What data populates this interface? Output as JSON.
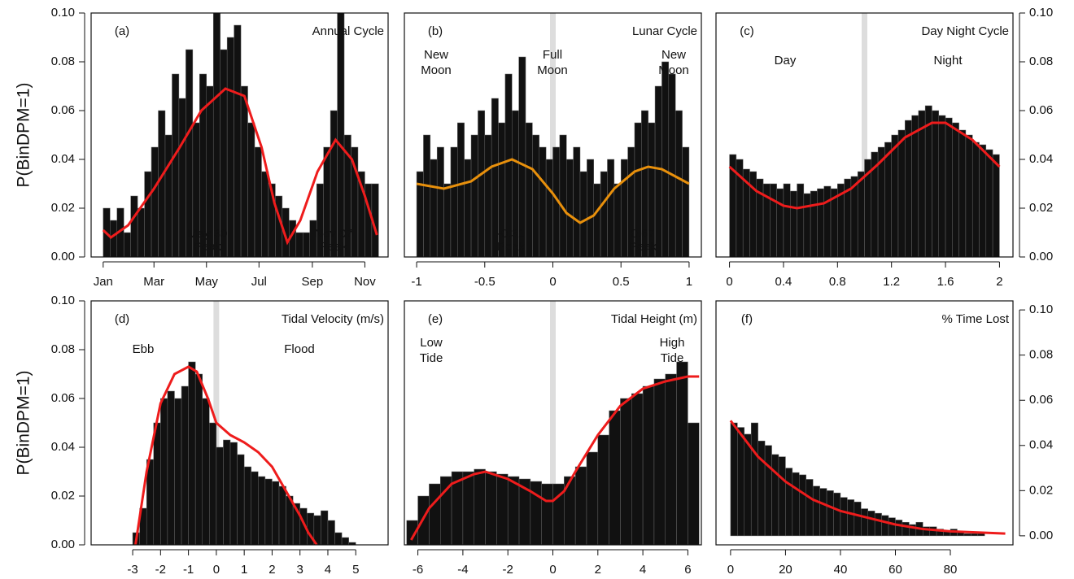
{
  "chart_data": [
    {
      "type": "histogram",
      "label": "(a)",
      "title": "Annual Cycle",
      "ylabel": "P(BinDPM=1)",
      "y_axis": "left",
      "bar_color": "#111111",
      "bins": [
        1,
        9,
        17,
        25,
        33,
        41,
        49,
        57,
        65,
        73,
        81,
        89,
        97,
        105,
        113,
        121,
        129,
        137,
        145,
        153,
        161,
        169,
        177,
        185,
        193,
        201,
        209,
        217,
        225,
        233,
        241,
        249,
        257,
        265,
        273,
        281,
        289,
        297,
        305,
        313,
        321
      ],
      "values": [
        0.02,
        0.015,
        0.02,
        0.01,
        0.025,
        0.02,
        0.035,
        0.045,
        0.06,
        0.05,
        0.075,
        0.065,
        0.085,
        0.055,
        0.075,
        0.07,
        0.1,
        0.085,
        0.09,
        0.095,
        0.07,
        0.055,
        0.045,
        0.035,
        0.03,
        0.025,
        0.02,
        0.015,
        0.01,
        0.01,
        0.015,
        0.03,
        0.045,
        0.06,
        0.1,
        0.05,
        0.045,
        0.035,
        0.03,
        0.03
      ],
      "xlim": [
        -13,
        332
      ],
      "xticks": [
        {
          "value": 1,
          "label": "Jan"
        },
        {
          "value": 60,
          "label": "Mar"
        },
        {
          "value": 121,
          "label": "May"
        },
        {
          "value": 182,
          "label": "Jul"
        },
        {
          "value": 244,
          "label": "Sep"
        },
        {
          "value": 305,
          "label": "Nov"
        }
      ],
      "ylim": [
        0,
        0.1
      ],
      "yticks": [
        {
          "value": 0,
          "label": "0.00"
        },
        {
          "value": 0.02,
          "label": "0.02"
        },
        {
          "value": 0.04,
          "label": "0.04"
        },
        {
          "value": 0.06,
          "label": "0.06"
        },
        {
          "value": 0.08,
          "label": "0.08"
        },
        {
          "value": 0.1,
          "label": "0.10"
        }
      ],
      "vlines": [],
      "curve": {
        "color": "#ee1c1c",
        "x": [
          1,
          10,
          30,
          60,
          90,
          115,
          143,
          165,
          185,
          200,
          215,
          230,
          250,
          271,
          290,
          305,
          319
        ],
        "values": [
          0.011,
          0.008,
          0.013,
          0.028,
          0.045,
          0.06,
          0.069,
          0.066,
          0.045,
          0.022,
          0.006,
          0.015,
          0.035,
          0.048,
          0.04,
          0.025,
          0.009
        ]
      },
      "annotations": [
        {
          "text": "May 30",
          "color": "#ffffff"
        },
        {
          "text": "Peak",
          "color": "#ffffff"
        },
        {
          "text": "Nov 07",
          "color": "#ffffff"
        },
        {
          "text": "Peak",
          "color": "#ffffff"
        }
      ]
    },
    {
      "type": "histogram",
      "label": "(b)",
      "title": "Lunar Cycle",
      "y_axis": "none",
      "bar_color": "#111111",
      "bins": [
        -1,
        -0.95,
        -0.9,
        -0.85,
        -0.8,
        -0.75,
        -0.7,
        -0.65,
        -0.6,
        -0.55,
        -0.5,
        -0.45,
        -0.4,
        -0.35,
        -0.3,
        -0.25,
        -0.2,
        -0.15,
        -0.1,
        -0.05,
        0,
        0.05,
        0.1,
        0.15,
        0.2,
        0.25,
        0.3,
        0.35,
        0.4,
        0.45,
        0.5,
        0.55,
        0.6,
        0.65,
        0.7,
        0.75,
        0.8,
        0.85,
        0.9,
        0.95,
        1
      ],
      "values": [
        0.035,
        0.05,
        0.04,
        0.045,
        0.03,
        0.045,
        0.055,
        0.04,
        0.05,
        0.06,
        0.05,
        0.065,
        0.055,
        0.075,
        0.06,
        0.082,
        0.055,
        0.05,
        0.045,
        0.04,
        0.045,
        0.05,
        0.04,
        0.045,
        0.035,
        0.04,
        0.03,
        0.035,
        0.04,
        0.03,
        0.04,
        0.045,
        0.055,
        0.06,
        0.055,
        0.07,
        0.08,
        0.075,
        0.06,
        0.045
      ],
      "xlim": [
        -1.09,
        1.09
      ],
      "xticks": [
        -1,
        -0.5,
        0,
        0.5,
        1
      ],
      "ylim": [
        0,
        0.1
      ],
      "vlines": [
        0
      ],
      "curve": {
        "color": "#e8900c",
        "x": [
          -1,
          -0.8,
          -0.6,
          -0.45,
          -0.3,
          -0.15,
          0,
          0.1,
          0.2,
          0.3,
          0.45,
          0.6,
          0.7,
          0.8,
          0.9,
          1
        ],
        "values": [
          0.03,
          0.028,
          0.031,
          0.037,
          0.04,
          0.036,
          0.026,
          0.018,
          0.014,
          0.017,
          0.028,
          0.035,
          0.037,
          0.036,
          0.033,
          0.03
        ]
      },
      "annotations": [
        {
          "text": "New",
          "color": "#2b2b8c"
        },
        {
          "text": "Moon",
          "color": "#2b2b8c"
        },
        {
          "text": "Full",
          "color": "#2b2b8c"
        },
        {
          "text": "Moon",
          "color": "#2b2b8c"
        },
        {
          "text": "New",
          "color": "#2b2b8c"
        },
        {
          "text": "Moon",
          "color": "#2b2b8c"
        },
        {
          "text": "-0.31",
          "color": "#ffffff"
        },
        {
          "text": "Peak",
          "color": "#ffffff"
        },
        {
          "text": "0.67",
          "color": "#ffffff"
        },
        {
          "text": "Peak",
          "color": "#ffffff"
        }
      ]
    },
    {
      "type": "histogram",
      "label": "(c)",
      "title": "Day Night Cycle",
      "y_axis": "right",
      "bar_color": "#111111",
      "bins": [
        0,
        0.05,
        0.1,
        0.15,
        0.2,
        0.25,
        0.3,
        0.35,
        0.4,
        0.45,
        0.5,
        0.55,
        0.6,
        0.65,
        0.7,
        0.75,
        0.8,
        0.85,
        0.9,
        0.95,
        1,
        1.05,
        1.1,
        1.15,
        1.2,
        1.25,
        1.3,
        1.35,
        1.4,
        1.45,
        1.5,
        1.55,
        1.6,
        1.65,
        1.7,
        1.75,
        1.8,
        1.85,
        1.9,
        1.95,
        2
      ],
      "values": [
        0.042,
        0.04,
        0.036,
        0.035,
        0.032,
        0.03,
        0.03,
        0.028,
        0.03,
        0.027,
        0.03,
        0.026,
        0.027,
        0.028,
        0.029,
        0.028,
        0.03,
        0.032,
        0.033,
        0.035,
        0.04,
        0.043,
        0.045,
        0.047,
        0.05,
        0.052,
        0.056,
        0.058,
        0.06,
        0.062,
        0.06,
        0.058,
        0.057,
        0.055,
        0.052,
        0.05,
        0.047,
        0.046,
        0.044,
        0.042
      ],
      "xlim": [
        -0.1,
        2.1
      ],
      "xticks": [
        0,
        0.4,
        0.8,
        1.2,
        1.6,
        2
      ],
      "ylim": [
        0,
        0.1
      ],
      "yticks": [
        {
          "value": 0,
          "label": "0.00"
        },
        {
          "value": 0.02,
          "label": "0.02"
        },
        {
          "value": 0.04,
          "label": "0.04"
        },
        {
          "value": 0.06,
          "label": "0.06"
        },
        {
          "value": 0.08,
          "label": "0.08"
        },
        {
          "value": 0.1,
          "label": "0.10"
        }
      ],
      "vlines": [
        1
      ],
      "curve": {
        "color": "#ee1c1c",
        "x": [
          0,
          0.2,
          0.4,
          0.5,
          0.7,
          0.9,
          1.1,
          1.3,
          1.5,
          1.6,
          1.8,
          2
        ],
        "values": [
          0.037,
          0.027,
          0.021,
          0.02,
          0.022,
          0.028,
          0.038,
          0.049,
          0.055,
          0.055,
          0.048,
          0.037
        ]
      },
      "annotations": [
        {
          "text": "Day",
          "color": "#2b2b8c"
        },
        {
          "text": "Night",
          "color": "#2b2b8c"
        }
      ]
    },
    {
      "type": "histogram",
      "label": "(d)",
      "title": "Tidal Velocity (m/s)",
      "ylabel": "P(BinDPM=1)",
      "y_axis": "left",
      "bar_color": "#111111",
      "bins": [
        -4,
        -3.75,
        -3.5,
        -3.25,
        -3,
        -2.75,
        -2.5,
        -2.25,
        -2,
        -1.75,
        -1.5,
        -1.25,
        -1,
        -0.75,
        -0.5,
        -0.25,
        0,
        0.25,
        0.5,
        0.75,
        1,
        1.25,
        1.5,
        1.75,
        2,
        2.25,
        2.5,
        2.75,
        3,
        3.25,
        3.5,
        3.75,
        4,
        4.25,
        4.5,
        4.75,
        5,
        5.25,
        5.5,
        5.75,
        6
      ],
      "values": [
        0,
        0,
        0,
        0,
        0.005,
        0.015,
        0.035,
        0.05,
        0.06,
        0.063,
        0.06,
        0.065,
        0.075,
        0.07,
        0.06,
        0.05,
        0.04,
        0.043,
        0.042,
        0.037,
        0.032,
        0.03,
        0.028,
        0.027,
        0.026,
        0.024,
        0.02,
        0.017,
        0.015,
        0.013,
        0.012,
        0.014,
        0.01,
        0.005,
        0.003,
        0.001,
        0,
        0,
        0,
        0
      ],
      "xlim": [
        -4.49,
        6.16
      ],
      "xticks": [
        -3,
        -2,
        -1,
        0,
        1,
        2,
        3,
        4,
        5
      ],
      "ylim": [
        0,
        0.1
      ],
      "yticks": [
        {
          "value": 0,
          "label": "0.00"
        },
        {
          "value": 0.02,
          "label": "0.02"
        },
        {
          "value": 0.04,
          "label": "0.04"
        },
        {
          "value": 0.06,
          "label": "0.06"
        },
        {
          "value": 0.08,
          "label": "0.08"
        },
        {
          "value": 0.1,
          "label": "0.10"
        }
      ],
      "vlines": [
        0
      ],
      "curve": {
        "color": "#ee1c1c",
        "x": [
          -2.9,
          -2.5,
          -2,
          -1.5,
          -1,
          -0.7,
          -0.3,
          0,
          0.5,
          1,
          1.5,
          2,
          2.5,
          3,
          3.3,
          3.6
        ],
        "values": [
          0,
          0.03,
          0.058,
          0.07,
          0.073,
          0.071,
          0.06,
          0.05,
          0.045,
          0.042,
          0.038,
          0.032,
          0.022,
          0.012,
          0.005,
          0
        ]
      },
      "annotations": [
        {
          "text": "Ebb",
          "color": "#2b2b8c"
        },
        {
          "text": "Flood",
          "color": "#2b2b8c"
        }
      ]
    },
    {
      "type": "histogram",
      "label": "(e)",
      "title": "Tidal Height (m)",
      "y_axis": "none",
      "bar_color": "#111111",
      "bins": [
        -6.5,
        -6,
        -5.5,
        -5,
        -4.5,
        -4,
        -3.5,
        -3,
        -2.5,
        -2,
        -1.5,
        -1,
        -0.5,
        0,
        0.5,
        1,
        1.5,
        2,
        2.5,
        3,
        3.5,
        4,
        4.5,
        5,
        5.5,
        6,
        6.5
      ],
      "values": [
        0.01,
        0.02,
        0.025,
        0.028,
        0.03,
        0.03,
        0.031,
        0.03,
        0.029,
        0.028,
        0.027,
        0.026,
        0.025,
        0.025,
        0.028,
        0.032,
        0.038,
        0.045,
        0.055,
        0.06,
        0.062,
        0.065,
        0.068,
        0.07,
        0.075,
        0.05
      ],
      "xlim": [
        -6.6,
        6.6
      ],
      "xticks": [
        -6,
        -4,
        -2,
        0,
        2,
        4,
        6
      ],
      "ylim": [
        0,
        0.1
      ],
      "vlines": [
        0
      ],
      "curve": {
        "color": "#ee1c1c",
        "x": [
          -6.3,
          -5.5,
          -4.5,
          -3.5,
          -3,
          -2,
          -1,
          -0.3,
          0,
          0.5,
          1,
          2,
          3,
          4,
          5,
          6,
          6.5
        ],
        "values": [
          0.002,
          0.015,
          0.025,
          0.029,
          0.03,
          0.027,
          0.022,
          0.018,
          0.018,
          0.022,
          0.03,
          0.045,
          0.057,
          0.064,
          0.067,
          0.069,
          0.069
        ]
      },
      "annotations": [
        {
          "text": "Low",
          "color": "#2b2b8c"
        },
        {
          "text": "Tide",
          "color": "#2b2b8c"
        },
        {
          "text": "High",
          "color": "#2b2b8c"
        },
        {
          "text": "Tide",
          "color": "#2b2b8c"
        }
      ]
    },
    {
      "type": "histogram",
      "label": "(f)",
      "title": "% Time Lost",
      "y_axis": "right",
      "bar_color": "#111111",
      "bins": [
        0,
        2.5,
        5,
        7.5,
        10,
        12.5,
        15,
        17.5,
        20,
        22.5,
        25,
        27.5,
        30,
        32.5,
        35,
        37.5,
        40,
        42.5,
        45,
        47.5,
        50,
        52.5,
        55,
        57.5,
        60,
        62.5,
        65,
        67.5,
        70,
        72.5,
        75,
        77.5,
        80,
        82.5,
        85,
        87.5,
        90,
        92.5,
        95,
        97.5,
        100
      ],
      "values": [
        0.05,
        0.048,
        0.045,
        0.05,
        0.042,
        0.04,
        0.036,
        0.035,
        0.03,
        0.028,
        0.027,
        0.025,
        0.022,
        0.021,
        0.02,
        0.019,
        0.017,
        0.016,
        0.015,
        0.012,
        0.011,
        0.01,
        0.009,
        0.008,
        0.007,
        0.006,
        0.005,
        0.006,
        0.004,
        0.004,
        0.003,
        0.002,
        0.003,
        0.002,
        0.001,
        0.001,
        0.001,
        0,
        0,
        0
      ],
      "xlim": [
        -5.3,
        102.8
      ],
      "xticks": [
        0,
        20,
        40,
        60,
        80
      ],
      "ylim": [
        -0.004,
        0.104
      ],
      "yticks": [
        {
          "value": 0,
          "label": "0.00"
        },
        {
          "value": 0.02,
          "label": "0.02"
        },
        {
          "value": 0.04,
          "label": "0.04"
        },
        {
          "value": 0.06,
          "label": "0.06"
        },
        {
          "value": 0.08,
          "label": "0.08"
        },
        {
          "value": 0.1,
          "label": "0.10"
        }
      ],
      "vlines": [],
      "curve": {
        "color": "#ee1c1c",
        "x": [
          0,
          5,
          10,
          20,
          30,
          40,
          50,
          60,
          70,
          80,
          90,
          100
        ],
        "values": [
          0.051,
          0.043,
          0.035,
          0.024,
          0.016,
          0.011,
          0.008,
          0.005,
          0.003,
          0.002,
          0.0015,
          0.001
        ]
      },
      "annotations": []
    }
  ]
}
